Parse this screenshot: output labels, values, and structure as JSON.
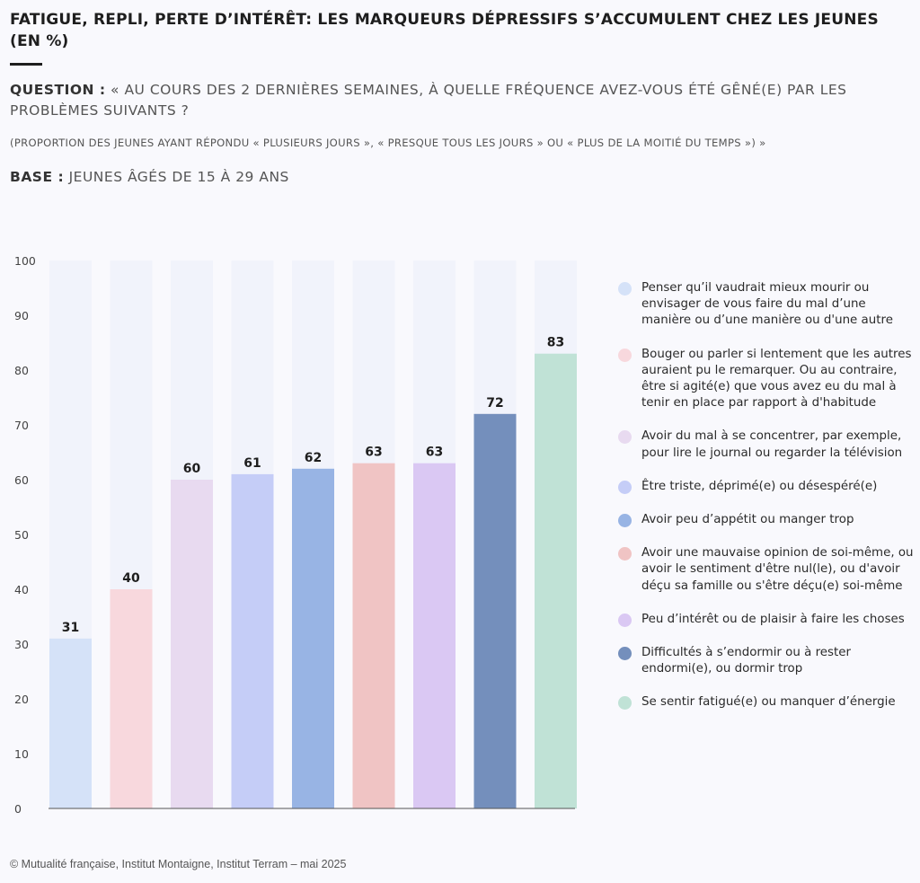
{
  "title": "FATIGUE, REPLI, PERTE D’INTÉRÊT: LES MARQUEURS DÉPRESSIFS S’ACCUMULENT CHEZ LES JEUNES (EN %)",
  "question": {
    "label": "QUESTION :",
    "text": "« AU COURS DES 2 DERNIÈRES SEMAINES, À QUELLE FRÉQUENCE AVEZ-VOUS ÉTÉ GÊNÉ(E) PAR LES PROBLÈMES SUIVANTS ?"
  },
  "note": "(PROPORTION DES JEUNES AYANT RÉPONDU « PLUSIEURS JOURS », « PRESQUE TOUS LES JOURS » OU « PLUS DE LA MOITIÉ DU TEMPS ») »",
  "base": {
    "label": "BASE :",
    "text": "JEUNES ÂGÉS DE 15 À 29 ANS"
  },
  "source": "© Mutualité française, Institut Montaigne, Institut Terram – mai 2025",
  "chart_data": {
    "type": "bar",
    "title": "FATIGUE, REPLI, PERTE D’INTÉRÊT: LES MARQUEURS DÉPRESSIFS S’ACCUMULENT CHEZ LES JEUNES (EN %)",
    "xlabel": "",
    "ylabel": "",
    "ylim": [
      0,
      100
    ],
    "yticks": [
      0,
      10,
      20,
      30,
      40,
      50,
      60,
      70,
      80,
      90,
      100
    ],
    "grid": false,
    "legend_position": "right",
    "background_track_color": "#f1f3fb",
    "categories": [
      "Penser qu’il vaudrait mieux mourir ou envisager de vous faire du mal d’une manière ou d’une manière ou d'une autre",
      "Bouger ou parler si lentement que les autres auraient pu le remarquer. Ou au contraire, être si agité(e) que vous avez eu du mal à tenir en place par rapport à d'habitude",
      "Avoir du mal à se concentrer, par exemple, pour lire le journal ou regarder la télévision",
      "Être triste, déprimé(e) ou désespéré(e)",
      "Avoir peu d’appétit ou manger trop",
      "Avoir une mauvaise opinion de soi-même, ou avoir le sentiment d'être nul(le), ou d'avoir déçu sa famille ou s'être déçu(e) soi-même",
      "Peu d’intérêt ou de plaisir à faire les choses",
      "Difficultés à s’endormir ou à rester endormi(e), ou dormir trop",
      "Se sentir fatigué(e) ou manquer d’énergie"
    ],
    "values": [
      31,
      40,
      60,
      61,
      62,
      63,
      63,
      72,
      83
    ],
    "colors": [
      "#d5e2f8",
      "#f8d8dd",
      "#e8daf0",
      "#c5cdf7",
      "#98b4e4",
      "#f0c4c4",
      "#dac8f3",
      "#748fbc",
      "#c0e2d6"
    ]
  }
}
